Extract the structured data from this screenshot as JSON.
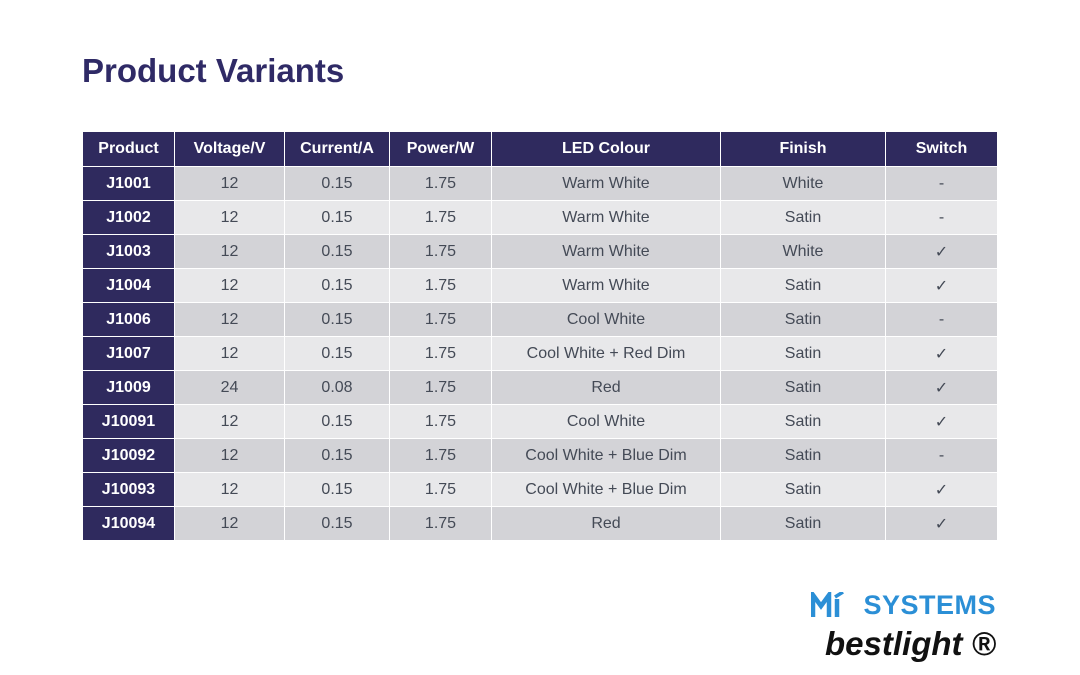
{
  "page": {
    "title": "Product Variants"
  },
  "table": {
    "headers": [
      "Product",
      "Voltage/V",
      "Current/A",
      "Power/W",
      "LED Colour",
      "Finish",
      "Switch"
    ],
    "rows": [
      [
        "J1001",
        "12",
        "0.15",
        "1.75",
        "Warm White",
        "White",
        "-"
      ],
      [
        "J1002",
        "12",
        "0.15",
        "1.75",
        "Warm White",
        "Satin",
        "-"
      ],
      [
        "J1003",
        "12",
        "0.15",
        "1.75",
        "Warm White",
        "White",
        "✓"
      ],
      [
        "J1004",
        "12",
        "0.15",
        "1.75",
        "Warm White",
        "Satin",
        "✓"
      ],
      [
        "J1006",
        "12",
        "0.15",
        "1.75",
        "Cool White",
        "Satin",
        "-"
      ],
      [
        "J1007",
        "12",
        "0.15",
        "1.75",
        "Cool White + Red Dim",
        "Satin",
        "✓"
      ],
      [
        "J1009",
        "24",
        "0.08",
        "1.75",
        "Red",
        "Satin",
        "✓"
      ],
      [
        "J10091",
        "12",
        "0.15",
        "1.75",
        "Cool White",
        "Satin",
        "✓"
      ],
      [
        "J10092",
        "12",
        "0.15",
        "1.75",
        "Cool White + Blue Dim",
        "Satin",
        "-"
      ],
      [
        "J10093",
        "12",
        "0.15",
        "1.75",
        "Cool White + Blue Dim",
        "Satin",
        "✓"
      ],
      [
        "J10094",
        "12",
        "0.15",
        "1.75",
        "Red",
        "Satin",
        "✓"
      ]
    ]
  },
  "logo": {
    "brand_top": "SYSTEMS",
    "brand_bottom": "bestlight ®",
    "mark_icon": "mi-logo-icon"
  },
  "colors": {
    "title": "#2f2a66",
    "header_bg": "#2f2a5e",
    "row_dark": "#d3d3d7",
    "row_light": "#e8e8ea",
    "brand_blue": "#2b8fd6"
  }
}
